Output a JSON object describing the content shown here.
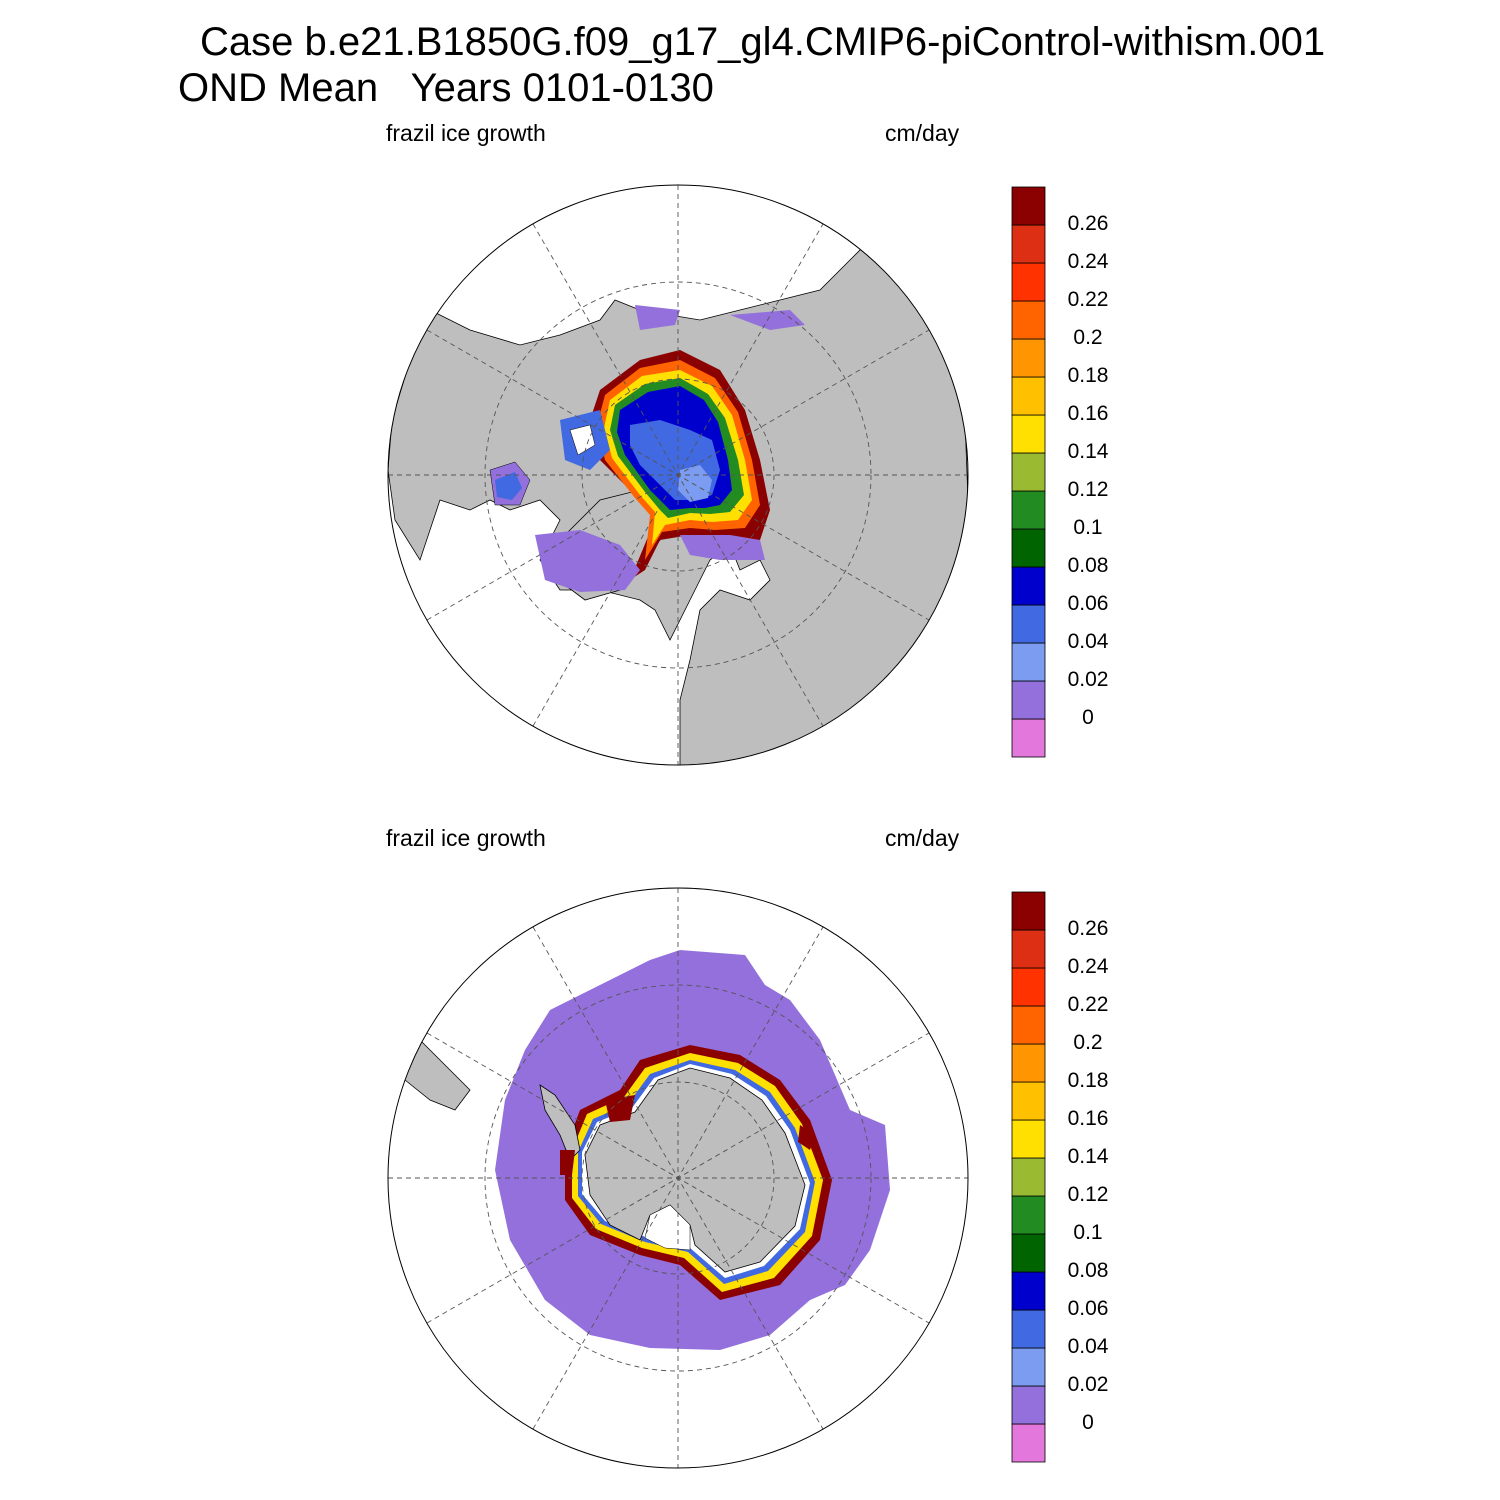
{
  "title": {
    "line1": "Case b.e21.B1850G.f09_g17_gl4.CMIP6-piControl-withism.001",
    "line2": "OND Mean   Years 0101-0130"
  },
  "panels": [
    {
      "id": "north",
      "left_label": "frazil ice growth",
      "right_label": "cm/day"
    },
    {
      "id": "south",
      "left_label": "frazil ice growth",
      "right_label": "cm/day"
    }
  ],
  "colorbar": {
    "colors": [
      "#e377dc",
      "#9370db",
      "#7b9cf1",
      "#4169e1",
      "#0000cd",
      "#006400",
      "#228b22",
      "#9aba32",
      "#ffe000",
      "#ffc000",
      "#ff9500",
      "#ff6400",
      "#ff3200",
      "#dc2f13",
      "#8b0000"
    ],
    "labels": [
      "0",
      "0.02",
      "0.04",
      "0.06",
      "0.08",
      "0.1",
      "0.12",
      "0.14",
      "0.16",
      "0.18",
      "0.2",
      "0.22",
      "0.24",
      "0.26"
    ]
  },
  "colors": {
    "land": "#bebebe",
    "ocean_no_ice": "#ffffff",
    "grid": "#555555"
  }
}
